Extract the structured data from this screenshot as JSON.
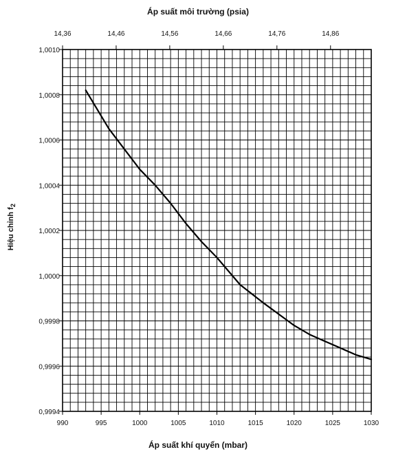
{
  "chart_data": {
    "type": "line",
    "title": "",
    "xlabel": "Áp suất khí quyển (mbar)",
    "x2label": "Áp suất môi trường (psia)",
    "ylabel": "Hiệu chỉnh f",
    "ylabel_subscript": "2",
    "xlim": [
      990,
      1030
    ],
    "ylim": [
      0.9994,
      1.001
    ],
    "x2lim": [
      14.36,
      14.936
    ],
    "grid": true,
    "x_ticks": [
      {
        "value": 990,
        "label": "990"
      },
      {
        "value": 995,
        "label": "995"
      },
      {
        "value": 1000,
        "label": "1000"
      },
      {
        "value": 1005,
        "label": "1005"
      },
      {
        "value": 1010,
        "label": "1010"
      },
      {
        "value": 1015,
        "label": "1015"
      },
      {
        "value": 1020,
        "label": "1020"
      },
      {
        "value": 1025,
        "label": "1025"
      },
      {
        "value": 1030,
        "label": "1030"
      }
    ],
    "x2_ticks": [
      {
        "value": 14.36,
        "label": "14,36"
      },
      {
        "value": 14.46,
        "label": "14,46"
      },
      {
        "value": 14.56,
        "label": "14,56"
      },
      {
        "value": 14.66,
        "label": "14,66"
      },
      {
        "value": 14.76,
        "label": "14,76"
      },
      {
        "value": 14.86,
        "label": "14,86"
      }
    ],
    "y_ticks": [
      {
        "value": 0.9994,
        "label": "0,9994"
      },
      {
        "value": 0.9996,
        "label": "0,9996"
      },
      {
        "value": 0.9998,
        "label": "0,9998"
      },
      {
        "value": 1.0,
        "label": "1,0000"
      },
      {
        "value": 1.0002,
        "label": "1,0002"
      },
      {
        "value": 1.0004,
        "label": "1,0004"
      },
      {
        "value": 1.0006,
        "label": "1,0006"
      },
      {
        "value": 1.0008,
        "label": "1,0008"
      },
      {
        "value": 1.001,
        "label": "1,0010"
      }
    ],
    "series": [
      {
        "x": [
          993,
          996,
          998,
          1000,
          1002,
          1004,
          1006,
          1008,
          1010,
          1013,
          1016,
          1018,
          1020,
          1022,
          1024,
          1026,
          1028,
          1030
        ],
        "y": [
          1.00082,
          1.00065,
          1.00056,
          1.00047,
          1.0004,
          1.00032,
          1.00023,
          1.00015,
          1.00008,
          0.99996,
          0.99988,
          0.99983,
          0.99978,
          0.99974,
          0.99971,
          0.99968,
          0.99965,
          0.99963
        ]
      }
    ],
    "colors": {
      "line": "#000000",
      "grid": "#000000",
      "background": "#ffffff"
    }
  }
}
